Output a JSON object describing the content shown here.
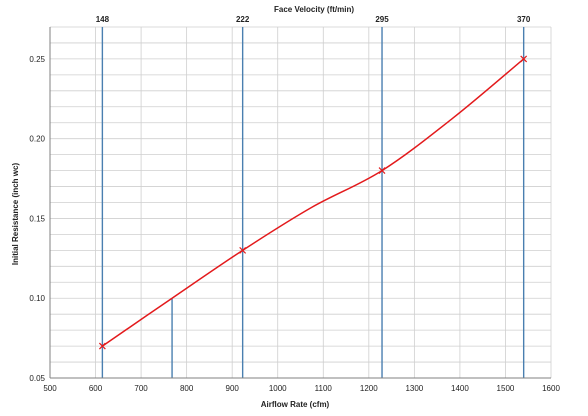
{
  "chart_data": {
    "type": "line",
    "title": "Face Velocity (ft/min)",
    "xlabel": "Airflow Rate (cfm)",
    "ylabel": "Initial Resistance (inch wc)",
    "xlim": [
      500,
      1600
    ],
    "ylim": [
      0.05,
      0.27
    ],
    "x_ticks": [
      500,
      600,
      700,
      800,
      900,
      1000,
      1100,
      1200,
      1300,
      1400,
      1500,
      1600
    ],
    "y_ticks": [
      0.05,
      0.1,
      0.15,
      0.2,
      0.25
    ],
    "y_tick_labels": [
      "0.05",
      "0.10",
      "0.15",
      "0.20",
      "0.25"
    ],
    "grid": true,
    "top_axis": {
      "label": "Face Velocity (ft/min)",
      "marks": [
        {
          "x": 615,
          "label": "148"
        },
        {
          "x": 923,
          "label": "222"
        },
        {
          "x": 1229,
          "label": "295"
        },
        {
          "x": 1540,
          "label": "370"
        }
      ]
    },
    "extra_vertical_lines": [
      {
        "x": 768,
        "y_top": 0.1
      }
    ],
    "series": [
      {
        "color": "#e31a1c",
        "points": [
          {
            "x": 615,
            "y": 0.07
          },
          {
            "x": 923,
            "y": 0.13
          },
          {
            "x": 1229,
            "y": 0.18
          },
          {
            "x": 1540,
            "y": 0.25
          }
        ],
        "curve": [
          {
            "x": 615,
            "y": 0.07
          },
          {
            "x": 768,
            "y": 0.1
          },
          {
            "x": 923,
            "y": 0.13
          },
          {
            "x": 1075,
            "y": 0.157
          },
          {
            "x": 1229,
            "y": 0.18
          },
          {
            "x": 1385,
            "y": 0.213
          },
          {
            "x": 1540,
            "y": 0.25
          }
        ]
      }
    ],
    "marker": "x",
    "colors": {
      "grid": "#cfcfcf",
      "vertical_lines": "#4a7fb0",
      "series": "#e31a1c",
      "axis": "#808080"
    }
  }
}
